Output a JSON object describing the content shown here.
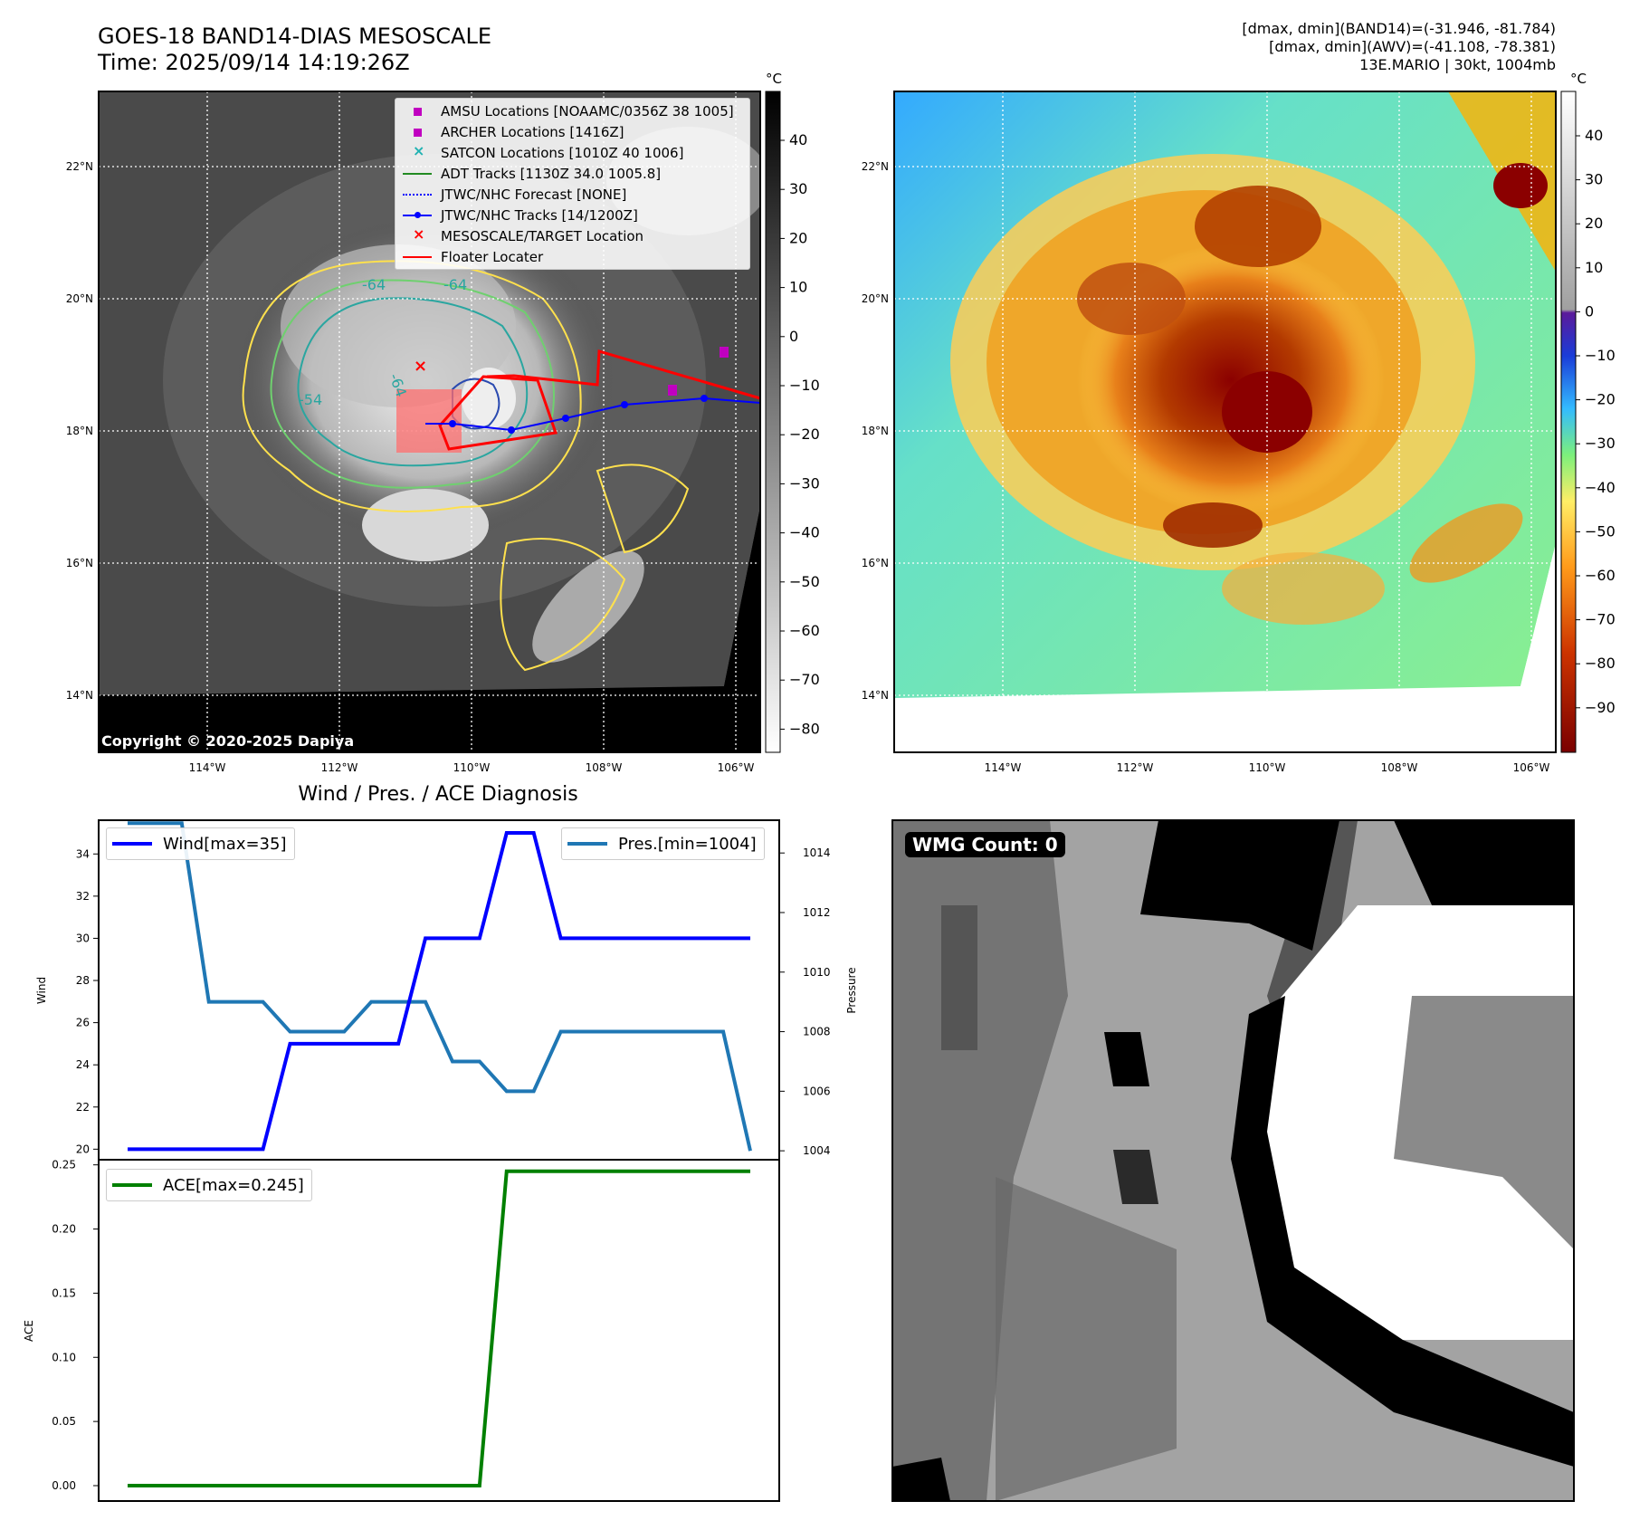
{
  "header": {
    "title_line1": "GOES-18 BAND14-DIAS MESOSCALE",
    "title_line2": "Time: 2025/09/14 14:19:26Z",
    "info_line1": "[dmax, dmin](BAND14)=(-31.946, -81.784)",
    "info_line2": "[dmax, dmin](AWV)=(-41.108, -78.381)",
    "info_line3": "13E.MARIO | 30kt, 1004mb"
  },
  "colorbar_unit": "°C",
  "map_axes": {
    "lat_labels": [
      "22°N",
      "20°N",
      "18°N",
      "16°N",
      "14°N"
    ],
    "lon_labels": [
      "114°W",
      "112°W",
      "110°W",
      "108°W",
      "106°W"
    ]
  },
  "colorbar_left": {
    "ticks": [
      "40",
      "30",
      "20",
      "10",
      "0",
      "−10",
      "−20",
      "−30",
      "−40",
      "−50",
      "−60",
      "−70",
      "−80"
    ]
  },
  "colorbar_right": {
    "ticks": [
      "40",
      "30",
      "20",
      "10",
      "0",
      "−10",
      "−20",
      "−30",
      "−40",
      "−50",
      "−60",
      "−70",
      "−80",
      "−90"
    ]
  },
  "map_legend": [
    {
      "label": "AMSU Locations [NOAAMC/0356Z 38 1005]",
      "symbol": "square",
      "color": "#c000c0"
    },
    {
      "label": "ARCHER Locations [1416Z]",
      "symbol": "square",
      "color": "#c000c0"
    },
    {
      "label": "SATCON Locations [1010Z 40 1006]",
      "symbol": "x",
      "color": "#20b2b2"
    },
    {
      "label": "ADT Tracks [1130Z 34.0 1005.8]",
      "symbol": "line",
      "color": "#228B22"
    },
    {
      "label": "JTWC/NHC Forecast [NONE]",
      "symbol": "dotted",
      "color": "#0000ff"
    },
    {
      "label": "JTWC/NHC Tracks [14/1200Z]",
      "symbol": "line-dot",
      "color": "#0000ff"
    },
    {
      "label": "MESOSCALE/TARGET Location",
      "symbol": "x",
      "color": "#ff0000"
    },
    {
      "label": "Floater Locater",
      "symbol": "line",
      "color": "#ff0000"
    }
  ],
  "contour_labels": [
    "-64",
    "-64",
    "-64",
    "-54"
  ],
  "copyright": "Copyright © 2020-2025 Dapiya",
  "wind_pres_title": "Wind / Pres. / ACE Diagnosis",
  "wmg_label": "WMG Count: 0",
  "chart_data": [
    {
      "type": "line",
      "title": "Wind / Pres. / ACE Diagnosis",
      "ylabel": "Wind",
      "y2label": "Pressure",
      "ylim": [
        19.5,
        35.6
      ],
      "y2lim": [
        1003.7,
        1015.1
      ],
      "yticks": [
        20,
        22,
        24,
        26,
        28,
        30,
        32,
        34
      ],
      "y2ticks": [
        1004,
        1006,
        1008,
        1010,
        1012,
        1014
      ],
      "legend_wind": "Wind[max=35]",
      "legend_pres": "Pres.[min=1004]",
      "series": [
        {
          "name": "Wind[max=35]",
          "color": "#0000ff",
          "values": [
            20,
            20,
            20,
            20,
            20,
            20,
            25,
            25,
            25,
            25,
            25,
            30,
            30,
            30,
            35,
            35,
            30,
            30,
            30,
            30,
            30,
            30,
            30,
            30
          ]
        },
        {
          "name": "Pres.[min=1004]",
          "color": "#1f77b4",
          "values": [
            1015,
            1015,
            1015,
            1009,
            1009,
            1009,
            1008,
            1008,
            1008,
            1009,
            1009,
            1009,
            1007,
            1007,
            1006,
            1006,
            1008,
            1008,
            1008,
            1008,
            1008,
            1008,
            1008,
            1004
          ]
        }
      ]
    },
    {
      "type": "line",
      "ylabel": "ACE",
      "ylim": [
        -0.012,
        0.254
      ],
      "yticks": [
        "0.00",
        "0.05",
        "0.10",
        "0.15",
        "0.20",
        "0.25"
      ],
      "legend_ace": "ACE[max=0.245]",
      "series": [
        {
          "name": "ACE[max=0.245]",
          "color": "#008000",
          "values": [
            0,
            0,
            0,
            0,
            0,
            0,
            0,
            0,
            0,
            0,
            0,
            0,
            0,
            0,
            0.245,
            0.245,
            0.245,
            0.245,
            0.245,
            0.245,
            0.245,
            0.245,
            0.245,
            0.245
          ]
        }
      ]
    }
  ]
}
